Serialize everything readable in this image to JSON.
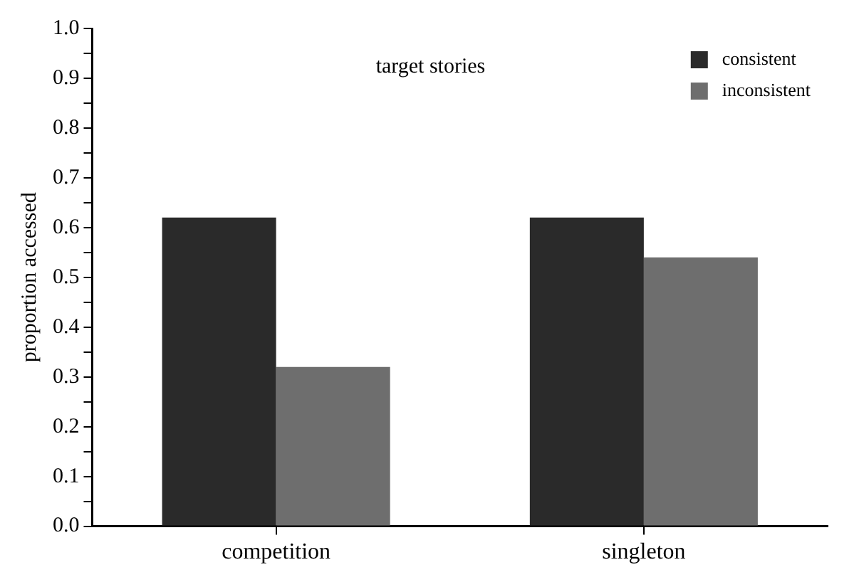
{
  "chart_data": {
    "type": "bar",
    "ylabel": "proportion accessed",
    "annotations": [
      "target stories"
    ],
    "categories": [
      "competition",
      "singleton"
    ],
    "series": [
      {
        "name": "consistent",
        "color": "#2a2a2a",
        "values": [
          0.62,
          0.62
        ]
      },
      {
        "name": "inconsistent",
        "color": "#6e6e6e",
        "values": [
          0.32,
          0.54
        ]
      }
    ],
    "ylim": [
      0,
      1
    ],
    "yticks": [
      {
        "value": 0,
        "label": "0.0"
      },
      {
        "value": 0.05,
        "label": null
      },
      {
        "value": 0.1,
        "label": "0.1"
      },
      {
        "value": 0.15,
        "label": null
      },
      {
        "value": 0.2,
        "label": "0.2"
      },
      {
        "value": 0.25,
        "label": null
      },
      {
        "value": 0.3,
        "label": "0.3"
      },
      {
        "value": 0.35,
        "label": null
      },
      {
        "value": 0.4,
        "label": "0.4"
      },
      {
        "value": 0.45,
        "label": null
      },
      {
        "value": 0.5,
        "label": "0.5"
      },
      {
        "value": 0.55,
        "label": null
      },
      {
        "value": 0.6,
        "label": "0.6"
      },
      {
        "value": 0.65,
        "label": null
      },
      {
        "value": 0.7,
        "label": "0.7"
      },
      {
        "value": 0.75,
        "label": null
      },
      {
        "value": 0.8,
        "label": "0.8"
      },
      {
        "value": 0.85,
        "label": null
      },
      {
        "value": 0.9,
        "label": "0.9"
      },
      {
        "value": 0.95,
        "label": null
      },
      {
        "value": 1,
        "label": "1.0"
      }
    ],
    "grid": false,
    "legend": "top right"
  }
}
